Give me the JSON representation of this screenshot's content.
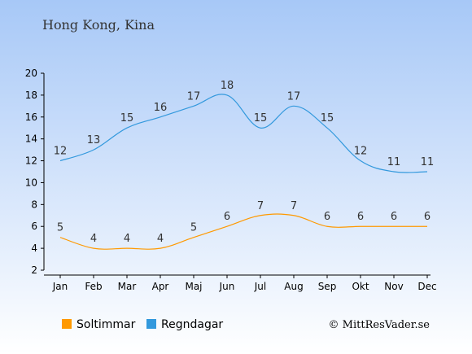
{
  "chart_data": {
    "type": "line",
    "title": "Hong Kong, Kina",
    "categories": [
      "Jan",
      "Feb",
      "Mar",
      "Apr",
      "Maj",
      "Jun",
      "Jul",
      "Aug",
      "Sep",
      "Okt",
      "Nov",
      "Dec"
    ],
    "series": [
      {
        "name": "Soltimmar",
        "color": "#ff9900",
        "values": [
          5,
          4,
          4,
          4,
          5,
          6,
          7,
          7,
          6,
          6,
          6,
          6
        ]
      },
      {
        "name": "Regndagar",
        "color": "#3399dd",
        "values": [
          12,
          13,
          15,
          16,
          17,
          18,
          15,
          17,
          15,
          12,
          11,
          11
        ]
      }
    ],
    "ylim": [
      2,
      20
    ],
    "yticks": [
      2,
      4,
      6,
      8,
      10,
      12,
      14,
      16,
      18,
      20
    ],
    "legend_position": "bottom-left",
    "copyright": "© MittResVader.se",
    "background_top": "#a7c8f7",
    "background_bottom": "#ffffff"
  }
}
